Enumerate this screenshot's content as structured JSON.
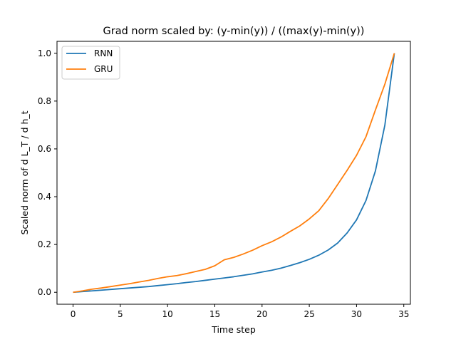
{
  "chart_data": {
    "type": "line",
    "title": "Grad norm scaled by: (y-min(y)) / ((max(y)-min(y))",
    "xlabel": "Time step",
    "ylabel": "Scaled norm of d L_T / d h_t",
    "xlim": [
      -1.7,
      35.7
    ],
    "ylim": [
      -0.05,
      1.05
    ],
    "xticks": [
      0,
      5,
      10,
      15,
      20,
      25,
      30,
      35
    ],
    "yticks": [
      "0.0",
      "0.2",
      "0.4",
      "0.6",
      "0.8",
      "1.0"
    ],
    "grid": false,
    "legend_position": "upper-left",
    "x": [
      0,
      1,
      2,
      3,
      4,
      5,
      6,
      7,
      8,
      9,
      10,
      11,
      12,
      13,
      14,
      15,
      16,
      17,
      18,
      19,
      20,
      21,
      22,
      23,
      24,
      25,
      26,
      27,
      28,
      29,
      30,
      31,
      32,
      33,
      34
    ],
    "series": [
      {
        "name": "RNN",
        "color": "#1f77b4",
        "values": [
          0.0,
          0.003,
          0.006,
          0.009,
          0.012,
          0.015,
          0.018,
          0.021,
          0.024,
          0.028,
          0.032,
          0.036,
          0.041,
          0.045,
          0.05,
          0.055,
          0.06,
          0.065,
          0.071,
          0.077,
          0.085,
          0.092,
          0.101,
          0.112,
          0.124,
          0.138,
          0.155,
          0.177,
          0.206,
          0.248,
          0.303,
          0.384,
          0.508,
          0.7,
          1.0
        ]
      },
      {
        "name": "GRU",
        "color": "#ff7f0e",
        "values": [
          0.0,
          0.006,
          0.013,
          0.018,
          0.024,
          0.03,
          0.036,
          0.043,
          0.05,
          0.058,
          0.065,
          0.07,
          0.078,
          0.087,
          0.096,
          0.111,
          0.136,
          0.146,
          0.16,
          0.176,
          0.195,
          0.211,
          0.231,
          0.255,
          0.278,
          0.307,
          0.341,
          0.392,
          0.451,
          0.51,
          0.573,
          0.651,
          0.763,
          0.871,
          1.0
        ]
      }
    ]
  }
}
